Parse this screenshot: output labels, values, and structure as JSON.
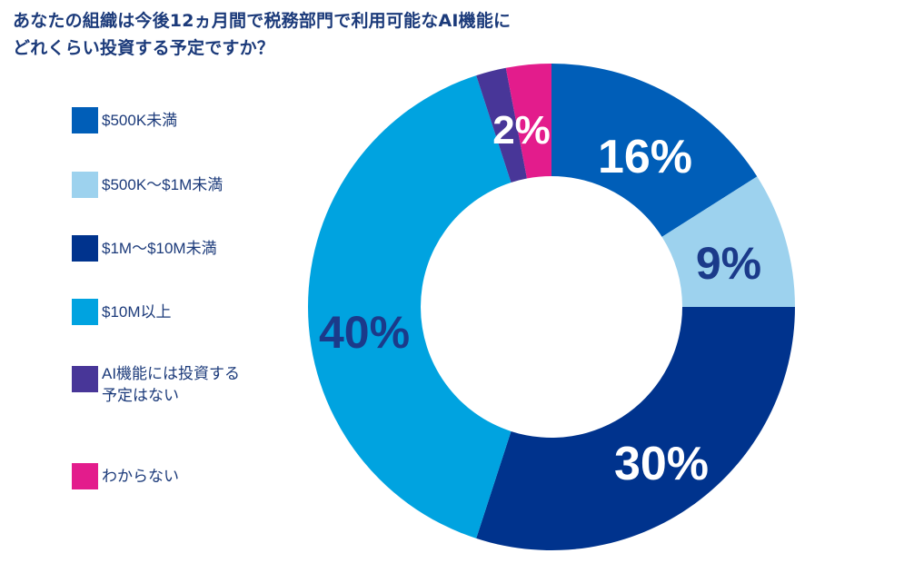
{
  "title": {
    "line1": "あなたの組織は今後12ヵ月間で税務部門で利用可能なAI機能に",
    "line2": "どれくらい投資する予定ですか？"
  },
  "legend": [
    {
      "label": "$500K未満",
      "color": "#005eb8"
    },
    {
      "label": "$500K〜$1M未満",
      "color": "#9dd2ee"
    },
    {
      "label": "$1M〜$10M未満",
      "color": "#00338d"
    },
    {
      "label": "$10M以上",
      "color": "#00a3e0"
    },
    {
      "label_line1": "AI機能には投資する",
      "label_line2": "予定はない",
      "color": "#483698"
    },
    {
      "label": "わからない",
      "color": "#e31c8c"
    }
  ],
  "labels": {
    "s1": "16%",
    "s2": "9%",
    "s3": "30%",
    "s4": "40%",
    "s5": "2%"
  },
  "chart_data": {
    "type": "pie",
    "subtype": "donut",
    "title": "あなたの組織は今後12ヵ月間で税務部門で利用可能なAI機能にどれくらい投資する予定ですか？",
    "categories": [
      "$500K未満",
      "$500K〜$1M未満",
      "$1M〜$10M未満",
      "$10M以上",
      "AI機能には投資する予定はない",
      "わからない"
    ],
    "values": [
      16,
      9,
      30,
      40,
      2,
      3
    ],
    "data_labels": [
      "16%",
      "9%",
      "30%",
      "40%",
      "2%",
      ""
    ],
    "colors": [
      "#005eb8",
      "#9dd2ee",
      "#00338d",
      "#00a3e0",
      "#483698",
      "#e31c8c"
    ],
    "start_angle": "12 o'clock, clockwise",
    "legend_position": "left"
  }
}
